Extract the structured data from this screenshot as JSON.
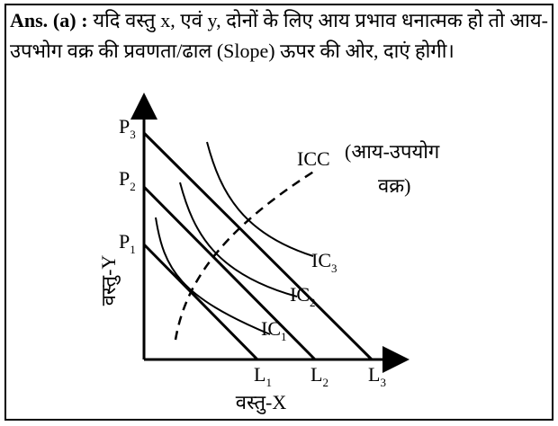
{
  "answer": {
    "label": "Ans. (a) :",
    "text": "यदि वस्तु x, एवं y, दोनों के लिए आय प्रभाव धनात्मक हो तो आय-उपभोग वक्र की प्रवणता/ढाल (Slope) ऊपर की ओर, दाएं होगी।"
  },
  "diagram": {
    "y_axis_label": "वस्तु-Y",
    "x_axis_label": "वस्तु-X",
    "price_lines": [
      {
        "p": {
          "main": "P",
          "sub": "1"
        },
        "l": {
          "main": "L",
          "sub": "1"
        }
      },
      {
        "p": {
          "main": "P",
          "sub": "2"
        },
        "l": {
          "main": "L",
          "sub": "2"
        }
      },
      {
        "p": {
          "main": "P",
          "sub": "3"
        },
        "l": {
          "main": "L",
          "sub": "3"
        }
      }
    ],
    "curves": [
      {
        "main": "IC",
        "sub": "1"
      },
      {
        "main": "IC",
        "sub": "2"
      },
      {
        "main": "IC",
        "sub": "3"
      }
    ],
    "icc": {
      "label": "ICC",
      "note_line1": "(आय-उपयोग",
      "note_line2": "वक्र)"
    }
  }
}
